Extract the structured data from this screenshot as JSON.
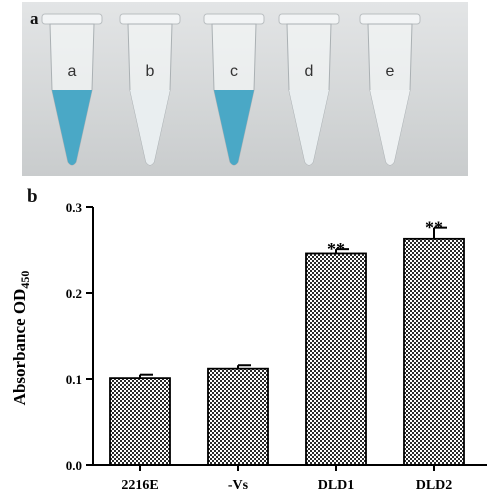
{
  "panel_a": {
    "label": "a",
    "tubes": [
      {
        "label": "a",
        "liquid": "#4aa8c6"
      },
      {
        "label": "b",
        "liquid": "#e9eef0"
      },
      {
        "label": "c",
        "liquid": "#4aa8c6"
      },
      {
        "label": "d",
        "liquid": "#e9eef0"
      },
      {
        "label": "e",
        "liquid": "#eef1f2"
      }
    ],
    "background": "#d9dcdd"
  },
  "panel_b": {
    "label": "b"
  },
  "chart_data": {
    "type": "bar",
    "title": "",
    "xlabel": "",
    "ylabel": "Absorbance OD450",
    "ylabel_main": "Absorbance OD",
    "ylabel_sub": "450",
    "categories": [
      "2216E",
      "-Vs",
      "DLD1",
      "DLD2"
    ],
    "values": [
      0.101,
      0.112,
      0.246,
      0.263
    ],
    "errors": [
      0.004,
      0.004,
      0.005,
      0.013
    ],
    "significance": [
      "",
      "",
      "**",
      "**"
    ],
    "ylim": [
      0.0,
      0.3
    ],
    "yticks": [
      0.0,
      0.1,
      0.2,
      0.3
    ],
    "ytick_labels": [
      "0.0",
      "0.1",
      "0.2",
      "0.3"
    ],
    "grid": false,
    "bar_pattern": "checkered"
  }
}
